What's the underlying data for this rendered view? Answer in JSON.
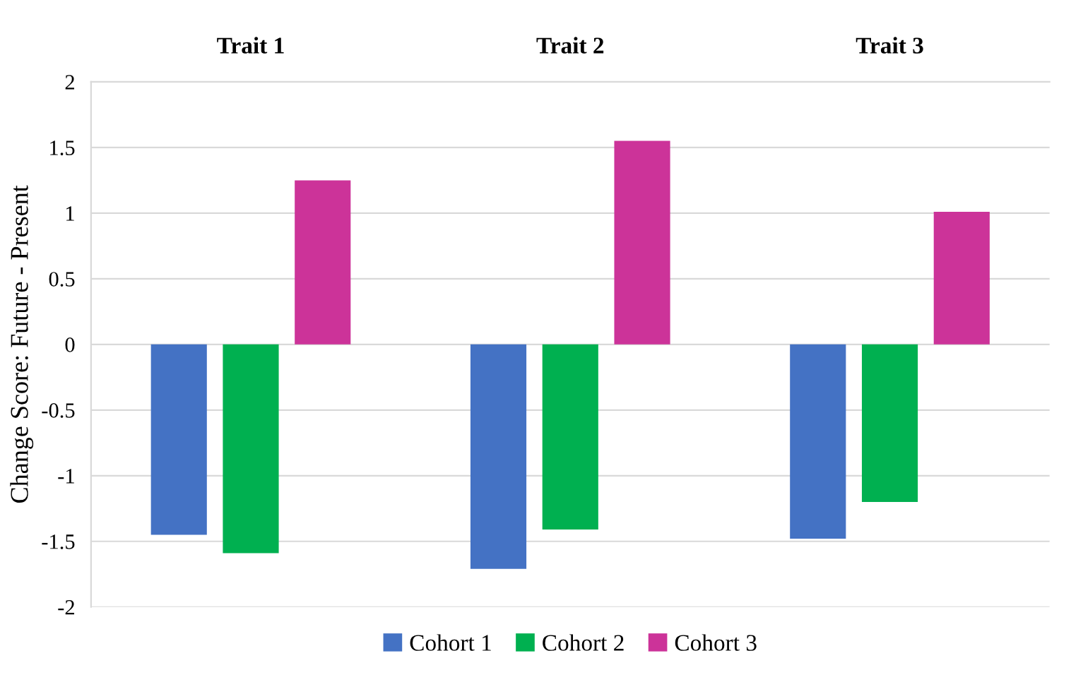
{
  "chart_data": {
    "type": "bar",
    "categories": [
      "Trait 1",
      "Trait 2",
      "Trait 3"
    ],
    "ylabel": "Change Score: Future - Present",
    "series": [
      {
        "name": "Cohort 1",
        "color": "#4472c4",
        "values": [
          -1.45,
          -1.71,
          -1.48
        ]
      },
      {
        "name": "Cohort 2",
        "color": "#00b050",
        "values": [
          -1.59,
          -1.41,
          -1.2
        ]
      },
      {
        "name": "Cohort 3",
        "color": "#cc3399",
        "values": [
          1.25,
          1.55,
          1.01
        ]
      }
    ],
    "ylim": [
      -2,
      2
    ],
    "yticks": [
      -2,
      -1.5,
      -1,
      -0.5,
      0,
      0.5,
      1,
      1.5,
      2
    ],
    "grid": "y",
    "legend": "bottom"
  }
}
